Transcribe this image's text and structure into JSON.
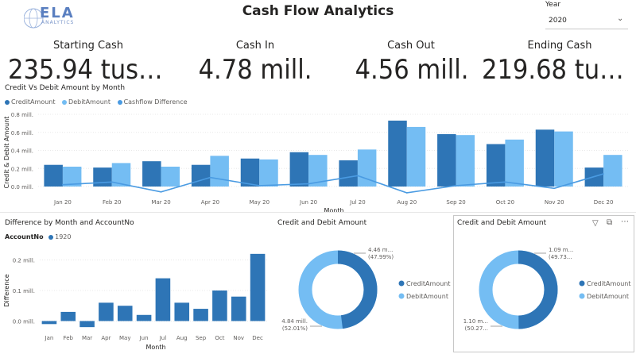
{
  "logo": {
    "name": "ELA",
    "sub": "ANALYTICS"
  },
  "title": "Cash Flow Analytics",
  "slicer": {
    "label": "Year",
    "value": "2020"
  },
  "kpis": [
    {
      "label": "Starting Cash",
      "value": "235.94 tusen"
    },
    {
      "label": "Cash In",
      "value": "4.78 mill."
    },
    {
      "label": "Cash Out",
      "value": "4.56 mill."
    },
    {
      "label": "Ending Cash",
      "value": "219.68 tus..."
    }
  ],
  "colors": {
    "credit": "#2e75b6",
    "debit": "#74bdf3",
    "difference": "#4a9be2"
  },
  "main_chart_title": "Credit Vs Debit Amount by Month",
  "main_legend": [
    "CreditAmount",
    "DebitAmount",
    "Cashflow Difference"
  ],
  "bottom_left_title": "Difference by Month and AccountNo",
  "account_legend": {
    "label": "AccountNo",
    "item": "1920"
  },
  "donut1": {
    "title": "Credit and Debit Amount",
    "label_top": "4.46 m...",
    "label_top_pct": "(47.99%)",
    "label_bottom": "4.84 mill.",
    "label_bottom_pct": "(52.01%)",
    "legend": [
      "CreditAmount",
      "DebitAmount"
    ]
  },
  "donut2": {
    "title": "Credit and Debit Amount",
    "label_top": "1.09 m...",
    "label_top_pct": "(49.73...",
    "label_bottom": "1.10 m...",
    "label_bottom_pct": "(50.27...",
    "legend": [
      "CreditAmount",
      "DebitAmount"
    ]
  },
  "chart_data": [
    {
      "type": "bar",
      "title": "Credit Vs Debit Amount by Month",
      "xlabel": "Month",
      "ylabel": "Credit & Debit Amount",
      "categories": [
        "Jan 20",
        "Feb 20",
        "Mar 20",
        "Apr 20",
        "May 20",
        "Jun 20",
        "Jul 20",
        "Aug 20",
        "Sep 20",
        "Oct 20",
        "Nov 20",
        "Dec 20"
      ],
      "yticks": [
        "0.0 mill.",
        "0.2 mill.",
        "0.4 mill.",
        "0.6 mill.",
        "0.8 mill."
      ],
      "ylim": [
        0,
        0.8
      ],
      "series": [
        {
          "name": "CreditAmount",
          "values": [
            0.24,
            0.21,
            0.28,
            0.24,
            0.31,
            0.38,
            0.29,
            0.73,
            0.58,
            0.47,
            0.63,
            0.21
          ]
        },
        {
          "name": "DebitAmount",
          "values": [
            0.22,
            0.26,
            0.22,
            0.34,
            0.3,
            0.35,
            0.41,
            0.66,
            0.57,
            0.52,
            0.61,
            0.35
          ]
        },
        {
          "name": "Cashflow Difference",
          "type": "line",
          "values": [
            0.02,
            0.05,
            -0.06,
            0.1,
            0.01,
            0.03,
            0.12,
            -0.07,
            0.01,
            0.05,
            -0.02,
            0.14
          ]
        }
      ],
      "grid": true,
      "legend": "top-left"
    },
    {
      "type": "bar",
      "title": "Difference by Month and AccountNo",
      "xlabel": "Month",
      "ylabel": "Difference",
      "categories": [
        "Jan",
        "Feb",
        "Mar",
        "Apr",
        "May",
        "Jun",
        "Jul",
        "Aug",
        "Sep",
        "Oct",
        "Nov",
        "Dec"
      ],
      "yticks": [
        "0.0 mill.",
        "0.1 mill.",
        "0.2 mill."
      ],
      "ylim": [
        -0.03,
        0.23
      ],
      "series": [
        {
          "name": "1920",
          "values": [
            -0.01,
            0.03,
            -0.02,
            0.06,
            0.05,
            0.02,
            0.14,
            0.06,
            0.04,
            0.1,
            0.08,
            0.22
          ]
        }
      ],
      "grid": true,
      "legend": "top-left"
    },
    {
      "type": "pie",
      "title": "Credit and Debit Amount",
      "categories": [
        "CreditAmount",
        "DebitAmount"
      ],
      "values": [
        4.46,
        4.84
      ],
      "legend": "right"
    },
    {
      "type": "pie",
      "title": "Credit and Debit Amount",
      "categories": [
        "CreditAmount",
        "DebitAmount"
      ],
      "values": [
        1.09,
        1.1
      ],
      "legend": "right"
    }
  ]
}
